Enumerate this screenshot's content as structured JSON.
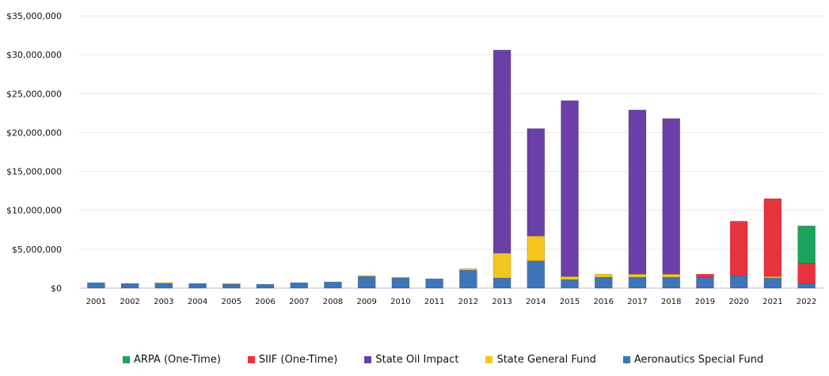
{
  "chart_data": {
    "type": "bar",
    "stacked": true,
    "categories": [
      "2001",
      "2002",
      "2003",
      "2004",
      "2005",
      "2006",
      "2007",
      "2008",
      "2009",
      "2010",
      "2011",
      "2012",
      "2013",
      "2014",
      "2015",
      "2016",
      "2017",
      "2018",
      "2019",
      "2020",
      "2021",
      "2022"
    ],
    "y_ticks": [
      "$0",
      "$5,000,000",
      "$10,000,000",
      "$15,000,000",
      "$20,000,000",
      "$25,000,000",
      "$30,000,000",
      "$35,000,000"
    ],
    "ylim": [
      0,
      35000000
    ],
    "grid": true,
    "legend_position": "bottom",
    "series": [
      {
        "name": "Aeronautics Special Fund",
        "color": "#3f74b8",
        "values": [
          700000,
          600000,
          650000,
          600000,
          550000,
          500000,
          700000,
          800000,
          1500000,
          1300000,
          1200000,
          2300000,
          1300000,
          3500000,
          1100000,
          1400000,
          1400000,
          1400000,
          1400000,
          1600000,
          1300000,
          600000
        ]
      },
      {
        "name": "State General Fund",
        "color": "#f4c51c",
        "values": [
          0,
          0,
          50000,
          0,
          50000,
          0,
          0,
          0,
          100000,
          100000,
          0,
          200000,
          3200000,
          3200000,
          400000,
          400000,
          400000,
          400000,
          0,
          0,
          200000,
          0
        ]
      },
      {
        "name": "State Oil Impact",
        "color": "#6a40a8",
        "values": [
          0,
          0,
          0,
          0,
          0,
          0,
          0,
          0,
          0,
          0,
          0,
          0,
          26100000,
          13800000,
          22600000,
          0,
          21100000,
          20000000,
          0,
          0,
          0,
          0
        ]
      },
      {
        "name": "SIIF (One-Time)",
        "color": "#e8333f",
        "values": [
          0,
          0,
          0,
          0,
          0,
          0,
          0,
          0,
          0,
          0,
          0,
          0,
          0,
          0,
          0,
          0,
          0,
          0,
          400000,
          7000000,
          10000000,
          2600000
        ]
      },
      {
        "name": "ARPA (One-Time)",
        "color": "#1aa35a",
        "values": [
          0,
          0,
          0,
          0,
          0,
          0,
          0,
          0,
          0,
          0,
          0,
          0,
          0,
          0,
          0,
          0,
          0,
          0,
          0,
          0,
          0,
          4800000
        ]
      }
    ],
    "legend_order": [
      "ARPA (One-Time)",
      "SIIF (One-Time)",
      "State Oil Impact",
      "State General Fund",
      "Aeronautics Special Fund"
    ]
  }
}
